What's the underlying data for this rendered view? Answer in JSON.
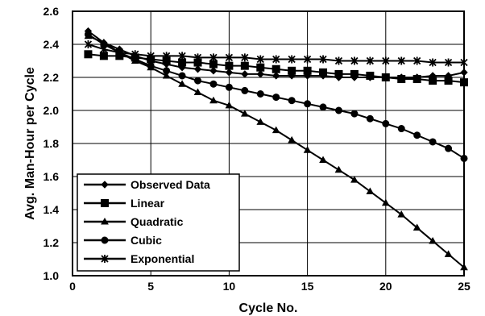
{
  "chart_data": {
    "type": "line",
    "title": "",
    "xlabel": "Cycle No.",
    "ylabel": "Avg. Man-Hour per Cycle",
    "xlim": [
      0,
      25
    ],
    "ylim": [
      1.0,
      2.6
    ],
    "xticks": [
      0,
      5,
      10,
      15,
      20,
      25
    ],
    "yticks": [
      1.0,
      1.2,
      1.4,
      1.6,
      1.8,
      2.0,
      2.2,
      2.4,
      2.6
    ],
    "ytick_labels": [
      "1.0",
      "1.2",
      "1.4",
      "1.6",
      "1.8",
      "2.0",
      "2.2",
      "2.4",
      "2.6"
    ],
    "xtick_labels": [
      "0",
      "5",
      "10",
      "15",
      "20",
      "25"
    ],
    "grid": true,
    "legend_position": "bottom-left",
    "x": [
      1,
      2,
      3,
      4,
      5,
      6,
      7,
      8,
      9,
      10,
      11,
      12,
      13,
      14,
      15,
      16,
      17,
      18,
      19,
      20,
      21,
      22,
      23,
      24,
      25
    ],
    "series": [
      {
        "name": "Observed Data",
        "marker": "diamond",
        "values": [
          2.48,
          2.41,
          2.37,
          2.33,
          2.3,
          2.28,
          2.26,
          2.25,
          2.24,
          2.23,
          2.22,
          2.22,
          2.21,
          2.21,
          2.21,
          2.21,
          2.2,
          2.2,
          2.2,
          2.2,
          2.2,
          2.2,
          2.21,
          2.21,
          2.23
        ]
      },
      {
        "name": "Linear",
        "marker": "square",
        "values": [
          2.34,
          2.33,
          2.33,
          2.32,
          2.31,
          2.3,
          2.29,
          2.29,
          2.28,
          2.27,
          2.27,
          2.26,
          2.25,
          2.24,
          2.24,
          2.23,
          2.22,
          2.22,
          2.21,
          2.2,
          2.19,
          2.19,
          2.18,
          2.18,
          2.17
        ]
      },
      {
        "name": "Quadratic",
        "marker": "triangle",
        "values": [
          2.45,
          2.41,
          2.35,
          2.3,
          2.26,
          2.21,
          2.16,
          2.11,
          2.06,
          2.03,
          1.98,
          1.93,
          1.88,
          1.82,
          1.76,
          1.7,
          1.64,
          1.58,
          1.51,
          1.44,
          1.37,
          1.29,
          1.21,
          1.13,
          1.05
        ]
      },
      {
        "name": "Cubic",
        "marker": "circle",
        "values": [
          2.46,
          2.4,
          2.35,
          2.31,
          2.27,
          2.24,
          2.21,
          2.18,
          2.16,
          2.14,
          2.12,
          2.1,
          2.08,
          2.06,
          2.04,
          2.02,
          2.0,
          1.98,
          1.95,
          1.92,
          1.89,
          1.85,
          1.81,
          1.77,
          1.71
        ]
      },
      {
        "name": "Exponential",
        "marker": "star",
        "values": [
          2.4,
          2.37,
          2.35,
          2.34,
          2.33,
          2.33,
          2.33,
          2.32,
          2.32,
          2.32,
          2.32,
          2.31,
          2.31,
          2.31,
          2.31,
          2.31,
          2.3,
          2.3,
          2.3,
          2.3,
          2.3,
          2.3,
          2.29,
          2.29,
          2.29
        ]
      }
    ]
  }
}
